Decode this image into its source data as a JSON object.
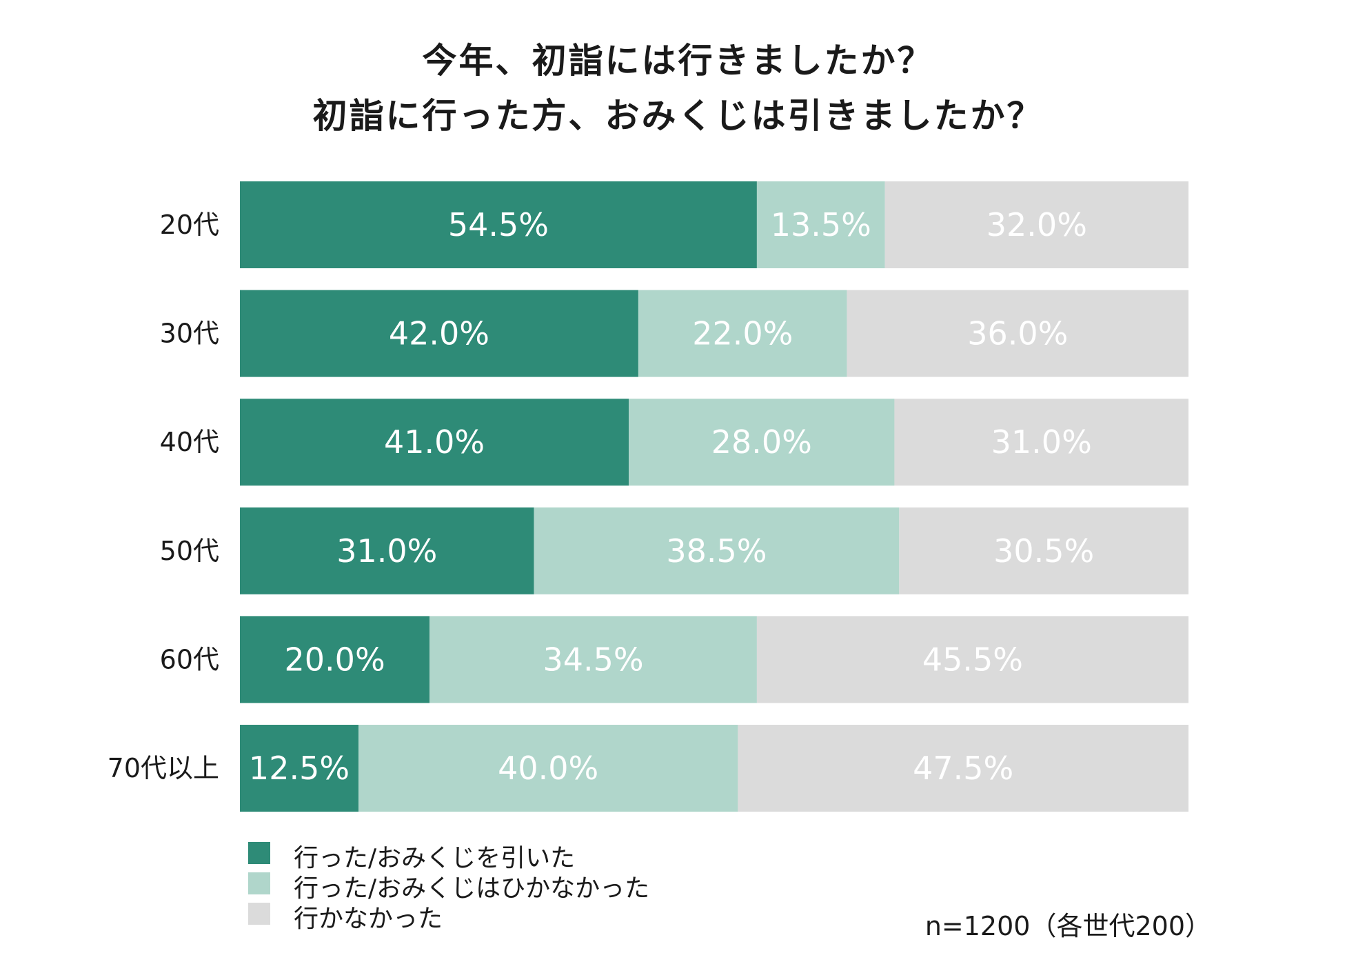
{
  "chart_data": {
    "type": "bar",
    "orientation": "horizontal",
    "stacked": true,
    "title": "今年、初詣には行きましたか？",
    "subtitle": "初詣に行った方、おみくじは引きましたか？",
    "categories": [
      "20代",
      "30代",
      "40代",
      "50代",
      "60代",
      "70代以上"
    ],
    "series": [
      {
        "name": "行った/おみくじを引いた",
        "color": "#2e8b77",
        "values": [
          54.5,
          42.0,
          41.0,
          31.0,
          20.0,
          12.5
        ],
        "labels": [
          "54.5%",
          "42.0%",
          "41.0%",
          "31.0%",
          "20.0%",
          "12.5%"
        ]
      },
      {
        "name": "行った/おみくじはひかなかった",
        "color": "#b0d6cb",
        "values": [
          13.5,
          22.0,
          28.0,
          38.5,
          34.5,
          40.0
        ],
        "labels": [
          "13.5%",
          "22.0%",
          "28.0%",
          "38.5%",
          "34.5%",
          "40.0%"
        ]
      },
      {
        "name": "行かなかった",
        "color": "#dbdbdb",
        "values": [
          32.0,
          36.0,
          31.0,
          30.5,
          45.5,
          47.5
        ],
        "labels": [
          "32.0%",
          "36.0%",
          "31.0%",
          "30.5%",
          "45.5%",
          "47.5%"
        ]
      }
    ],
    "xlim": [
      0,
      100
    ],
    "grid": false,
    "legend_position": "bottom-left"
  },
  "footnote": "n=1200（各世代200）"
}
